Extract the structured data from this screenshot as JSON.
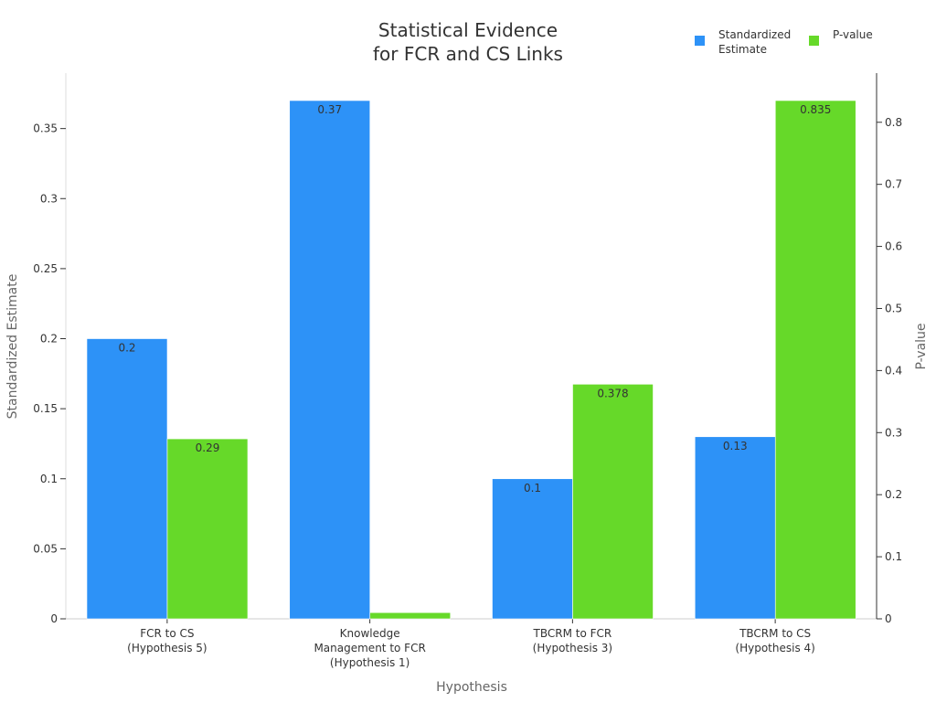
{
  "chart_data": {
    "type": "bar",
    "title_lines": [
      "Statistical Evidence",
      "for FCR and CS Links"
    ],
    "xlabel": "Hypothesis",
    "ylabel_left": "Standardized Estimate",
    "ylabel_right": "P-value",
    "categories": [
      [
        "FCR to CS",
        "(Hypothesis 5)"
      ],
      [
        "Knowledge",
        "Management to FCR",
        "(Hypothesis 1)"
      ],
      [
        "TBCRM to FCR",
        "(Hypothesis 3)"
      ],
      [
        "TBCRM to CS",
        "(Hypothesis 4)"
      ]
    ],
    "series": [
      {
        "name_lines": [
          "Standardized",
          "Estimate"
        ],
        "axis": "left",
        "color": "#2d92f7",
        "values": [
          0.2,
          0.37,
          0.1,
          0.13
        ],
        "labels": [
          "0.2",
          "0.37",
          "0.1",
          "0.13"
        ]
      },
      {
        "name_lines": [
          "P-value"
        ],
        "axis": "right",
        "color": "#66d929",
        "values": [
          0.29,
          0.01,
          0.378,
          0.835
        ],
        "labels": [
          "0.29",
          "",
          "0.378",
          "0.835"
        ]
      }
    ],
    "ylim_left": [
      0,
      0.37
    ],
    "yticks_left": [
      "0",
      "0.05",
      "0.1",
      "0.15",
      "0.2",
      "0.25",
      "0.3",
      "0.35"
    ],
    "ylim_right": [
      0,
      0.835
    ],
    "yticks_right": [
      "0",
      "0.1",
      "0.2",
      "0.3",
      "0.4",
      "0.5",
      "0.6",
      "0.7",
      "0.8"
    ],
    "grid": false,
    "legend_position": "top-right"
  }
}
